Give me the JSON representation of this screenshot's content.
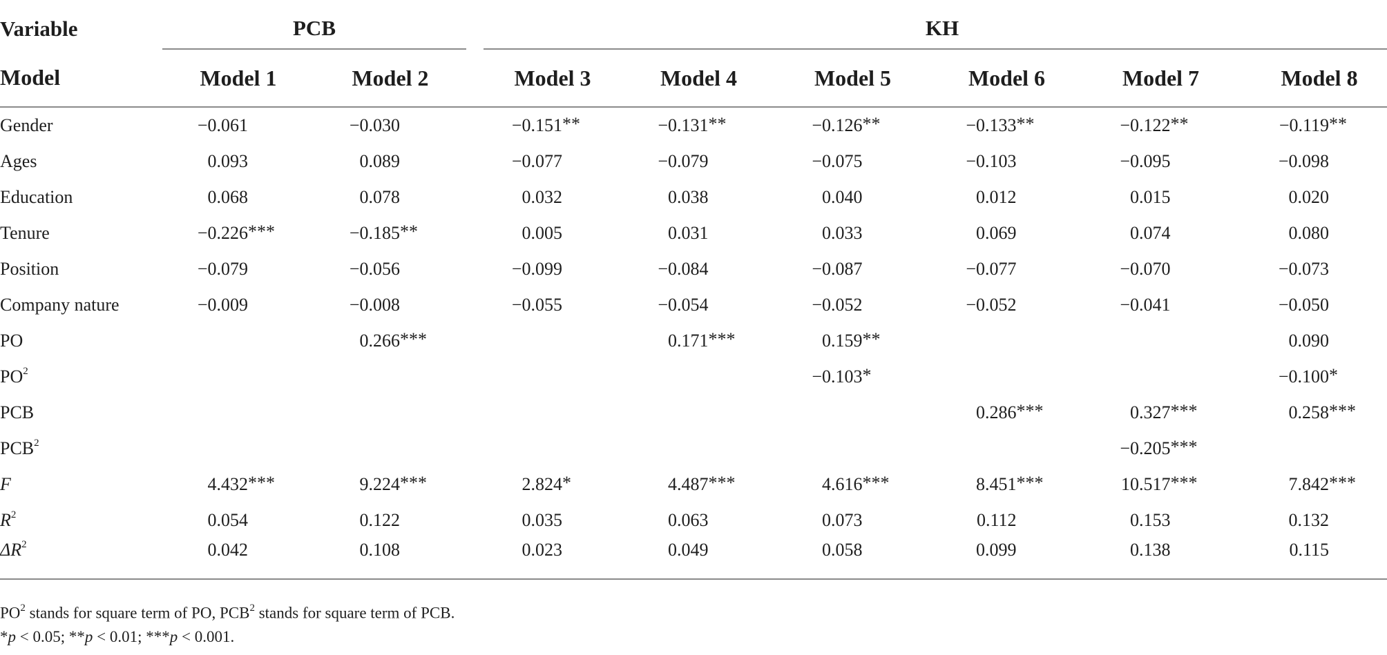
{
  "header": {
    "variable_label": "Variable",
    "group_pcb": "PCB",
    "group_kh": "KH",
    "model_label": "Model",
    "models": [
      "Model 1",
      "Model 2",
      "Model 3",
      "Model 4",
      "Model 5",
      "Model 6",
      "Model 7",
      "Model 8"
    ]
  },
  "rows": [
    {
      "label": "Gender",
      "cells": [
        [
          "−0.061",
          ""
        ],
        [
          "−0.030",
          ""
        ],
        [
          "−0.151",
          "**"
        ],
        [
          "−0.131",
          "**"
        ],
        [
          "−0.126",
          "**"
        ],
        [
          "−0.133",
          "**"
        ],
        [
          "−0.122",
          "**"
        ],
        [
          "−0.119",
          "**"
        ]
      ]
    },
    {
      "label": "Ages",
      "cells": [
        [
          "0.093",
          ""
        ],
        [
          "0.089",
          ""
        ],
        [
          "−0.077",
          ""
        ],
        [
          "−0.079",
          ""
        ],
        [
          "−0.075",
          ""
        ],
        [
          "−0.103",
          ""
        ],
        [
          "−0.095",
          ""
        ],
        [
          "−0.098",
          ""
        ]
      ]
    },
    {
      "label": "Education",
      "cells": [
        [
          "0.068",
          ""
        ],
        [
          "0.078",
          ""
        ],
        [
          "0.032",
          ""
        ],
        [
          "0.038",
          ""
        ],
        [
          "0.040",
          ""
        ],
        [
          "0.012",
          ""
        ],
        [
          "0.015",
          ""
        ],
        [
          "0.020",
          ""
        ]
      ]
    },
    {
      "label": "Tenure",
      "cells": [
        [
          "−0.226",
          "***"
        ],
        [
          "−0.185",
          "**"
        ],
        [
          "0.005",
          ""
        ],
        [
          "0.031",
          ""
        ],
        [
          "0.033",
          ""
        ],
        [
          "0.069",
          ""
        ],
        [
          "0.074",
          ""
        ],
        [
          "0.080",
          ""
        ]
      ]
    },
    {
      "label": "Position",
      "cells": [
        [
          "−0.079",
          ""
        ],
        [
          "−0.056",
          ""
        ],
        [
          "−0.099",
          ""
        ],
        [
          "−0.084",
          ""
        ],
        [
          "−0.087",
          ""
        ],
        [
          "−0.077",
          ""
        ],
        [
          "−0.070",
          ""
        ],
        [
          "−0.073",
          ""
        ]
      ]
    },
    {
      "label": "Company nature",
      "cells": [
        [
          "−0.009",
          ""
        ],
        [
          "−0.008",
          ""
        ],
        [
          "−0.055",
          ""
        ],
        [
          "−0.054",
          ""
        ],
        [
          "−0.052",
          ""
        ],
        [
          "−0.052",
          ""
        ],
        [
          "−0.041",
          ""
        ],
        [
          "−0.050",
          ""
        ]
      ]
    },
    {
      "label": "PO",
      "cells": [
        [
          "",
          ""
        ],
        [
          "0.266",
          "***"
        ],
        [
          "",
          ""
        ],
        [
          "0.171",
          "***"
        ],
        [
          "0.159",
          "**"
        ],
        [
          "",
          ""
        ],
        [
          "",
          ""
        ],
        [
          "0.090",
          ""
        ]
      ]
    },
    {
      "label": "PO",
      "sup": "2",
      "cells": [
        [
          "",
          ""
        ],
        [
          "",
          ""
        ],
        [
          "",
          ""
        ],
        [
          "",
          ""
        ],
        [
          "−0.103",
          "*"
        ],
        [
          "",
          ""
        ],
        [
          "",
          ""
        ],
        [
          "−0.100",
          "*"
        ]
      ]
    },
    {
      "label": "PCB",
      "cells": [
        [
          "",
          ""
        ],
        [
          "",
          ""
        ],
        [
          "",
          ""
        ],
        [
          "",
          ""
        ],
        [
          "",
          ""
        ],
        [
          "0.286",
          "***"
        ],
        [
          "0.327",
          "***"
        ],
        [
          "0.258",
          "***"
        ]
      ]
    },
    {
      "label": "PCB",
      "sup": "2",
      "cells": [
        [
          "",
          ""
        ],
        [
          "",
          ""
        ],
        [
          "",
          ""
        ],
        [
          "",
          ""
        ],
        [
          "",
          ""
        ],
        [
          "",
          ""
        ],
        [
          "−0.205",
          "***"
        ],
        [
          "",
          ""
        ]
      ]
    },
    {
      "label": "F",
      "italic": true,
      "cells": [
        [
          "4.432",
          "***"
        ],
        [
          "9.224",
          "***"
        ],
        [
          "2.824",
          "*"
        ],
        [
          "4.487",
          "***"
        ],
        [
          "4.616",
          "***"
        ],
        [
          "8.451",
          "***"
        ],
        [
          "10.517",
          "***"
        ],
        [
          "7.842",
          "***"
        ]
      ]
    },
    {
      "label": "R",
      "italic": true,
      "sup": "2",
      "cells": [
        [
          "0.054",
          ""
        ],
        [
          "0.122",
          ""
        ],
        [
          "0.035",
          ""
        ],
        [
          "0.063",
          ""
        ],
        [
          "0.073",
          ""
        ],
        [
          "0.112",
          ""
        ],
        [
          "0.153",
          ""
        ],
        [
          "0.132",
          ""
        ]
      ]
    },
    {
      "label": "ΔR",
      "italic": true,
      "sup": "2",
      "cells": [
        [
          "0.042",
          ""
        ],
        [
          "0.108",
          ""
        ],
        [
          "0.023",
          ""
        ],
        [
          "0.049",
          ""
        ],
        [
          "0.058",
          ""
        ],
        [
          "0.099",
          ""
        ],
        [
          "0.138",
          ""
        ],
        [
          "0.115",
          ""
        ]
      ]
    }
  ],
  "notes": {
    "line1_a": "PO",
    "line1_sup": "2",
    "line1_b": " stands for square term of PO, PCB",
    "line1_sup2": "2",
    "line1_c": " stands for square term of PCB.",
    "sig_1_star": "*",
    "sig_1_p": "p",
    "sig_1_rest": " < 0.05; ",
    "sig_2_star": "**",
    "sig_2_p": "p",
    "sig_2_rest": " < 0.01; ",
    "sig_3_star": "***",
    "sig_3_p": "p",
    "sig_3_rest": " < 0.001."
  }
}
